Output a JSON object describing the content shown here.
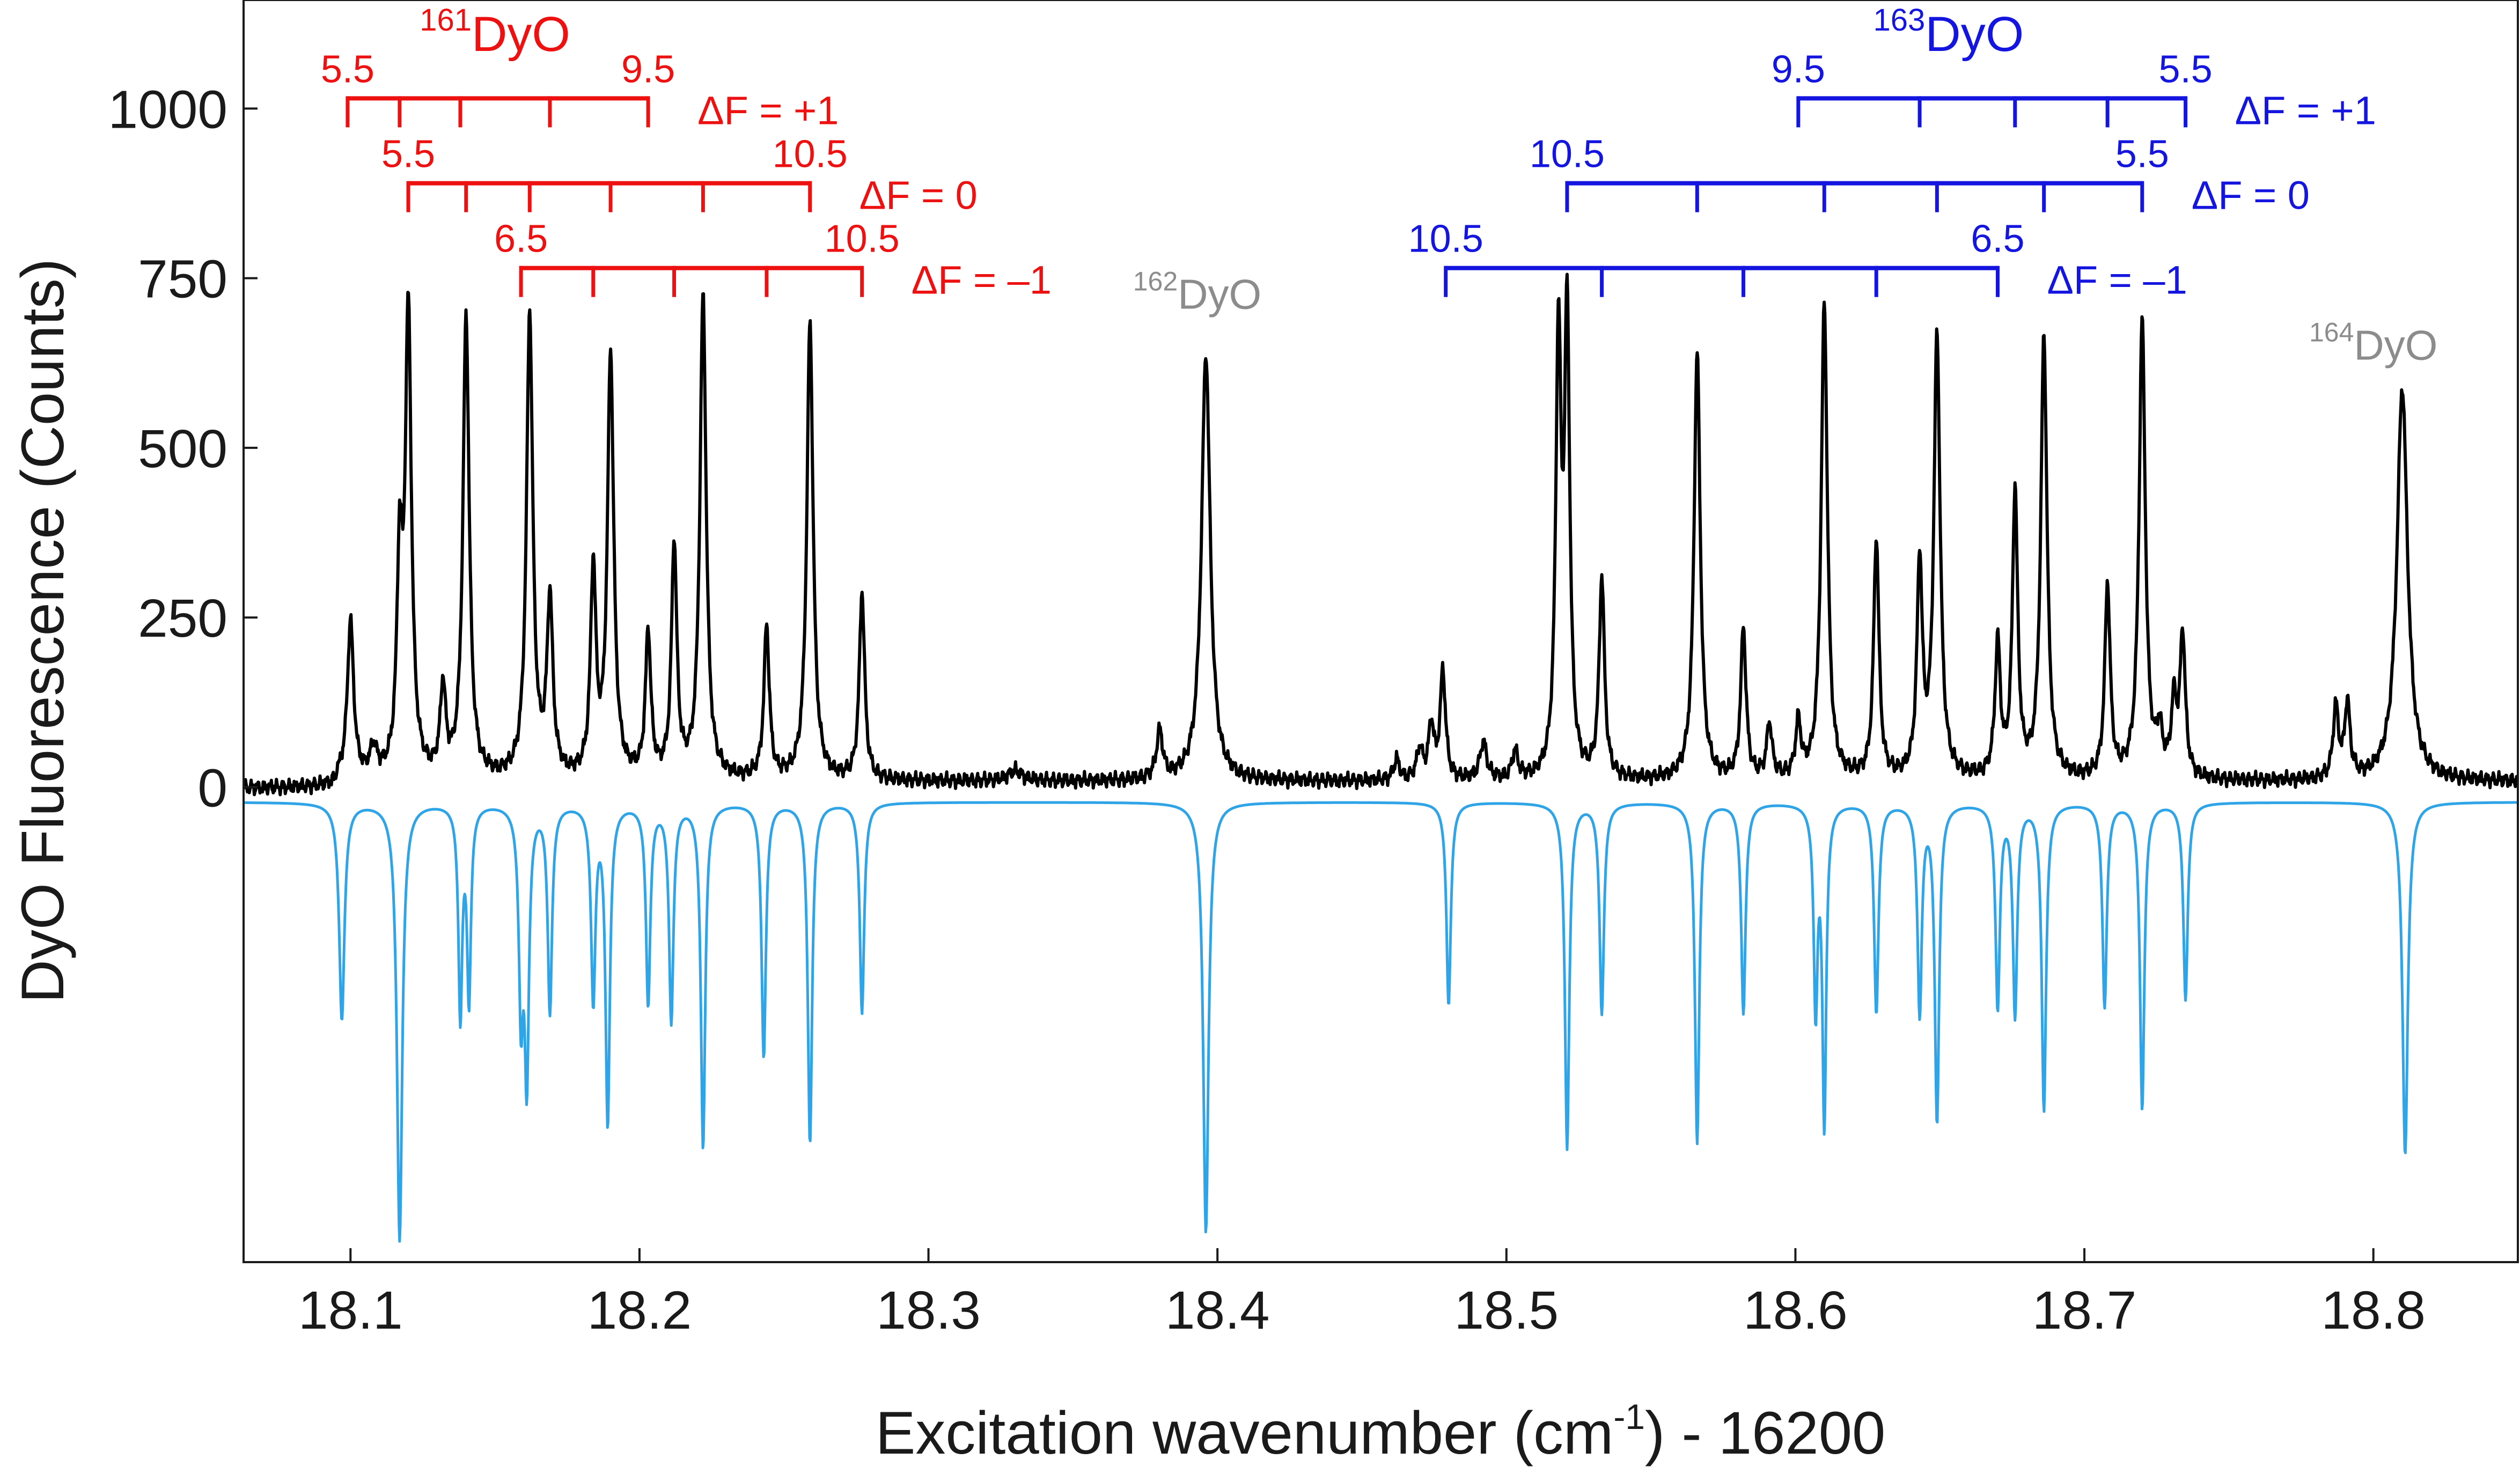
{
  "chart_data": {
    "type": "line",
    "title": "",
    "xlabel": {
      "main": "Excitation wavenumber (cm",
      "sup": "-1",
      "tail": ") - 16200"
    },
    "ylabel": "DyO Fluorescence (Counts)",
    "xlim": [
      18.063,
      18.85
    ],
    "ylim": [
      -700,
      1160
    ],
    "xticks": [
      18.1,
      18.2,
      18.3,
      18.4,
      18.5,
      18.6,
      18.7,
      18.8
    ],
    "xtick_labels": [
      "18.1",
      "18.2",
      "18.3",
      "18.4",
      "18.5",
      "18.6",
      "18.7",
      "18.8"
    ],
    "yticks": [
      0,
      250,
      500,
      750,
      1000
    ],
    "ytick_labels": [
      "0",
      "250",
      "500",
      "750",
      "1000"
    ],
    "grid": false,
    "colors": {
      "measured": "#000000",
      "simulated": "#2fa4e7",
      "isotope_161": "#ee1111",
      "isotope_163": "#1515e0",
      "minor_isotope": "#8c8c8c"
    },
    "series": [
      {
        "key": "measured",
        "baseline": 5,
        "peaks": [
          [
            18.1,
            233,
            0.0013
          ],
          [
            18.108,
            40,
            0.0015
          ],
          [
            18.117,
            300,
            0.0011
          ],
          [
            18.12,
            680,
            0.0013
          ],
          [
            18.132,
            130,
            0.0011
          ],
          [
            18.14,
            680,
            0.0013
          ],
          [
            18.162,
            685,
            0.0013
          ],
          [
            18.169,
            260,
            0.0012
          ],
          [
            18.184,
            305,
            0.0011
          ],
          [
            18.19,
            625,
            0.0013
          ],
          [
            18.203,
            213,
            0.0011
          ],
          [
            18.212,
            345,
            0.0011
          ],
          [
            18.222,
            710,
            0.0013
          ],
          [
            18.244,
            225,
            0.0011
          ],
          [
            18.259,
            675,
            0.0013
          ],
          [
            18.277,
            278,
            0.0011
          ],
          [
            18.33,
            15,
            0.003
          ],
          [
            18.38,
            70,
            0.0013
          ],
          [
            18.396,
            630,
            0.0018
          ],
          [
            18.462,
            30,
            0.0012
          ],
          [
            18.47,
            45,
            0.0012
          ],
          [
            18.474,
            80,
            0.0011
          ],
          [
            18.478,
            160,
            0.0011
          ],
          [
            18.492,
            55,
            0.0014
          ],
          [
            18.503,
            40,
            0.0012
          ],
          [
            18.518,
            635,
            0.0011
          ],
          [
            18.521,
            665,
            0.0011
          ],
          [
            18.533,
            295,
            0.0011
          ],
          [
            18.566,
            630,
            0.0013
          ],
          [
            18.582,
            222,
            0.0011
          ],
          [
            18.591,
            80,
            0.0011
          ],
          [
            18.601,
            80,
            0.0011
          ],
          [
            18.61,
            700,
            0.0013
          ],
          [
            18.628,
            355,
            0.0011
          ],
          [
            18.643,
            315,
            0.0011
          ],
          [
            18.649,
            650,
            0.0013
          ],
          [
            18.67,
            195,
            0.0011
          ],
          [
            18.676,
            420,
            0.0011
          ],
          [
            18.686,
            650,
            0.0013
          ],
          [
            18.708,
            285,
            0.0011
          ],
          [
            18.72,
            675,
            0.0013
          ],
          [
            18.726,
            60,
            0.0012
          ],
          [
            18.731,
            105,
            0.0011
          ],
          [
            18.734,
            210,
            0.0011
          ],
          [
            18.787,
            105,
            0.0011
          ],
          [
            18.791,
            110,
            0.0011
          ],
          [
            18.81,
            580,
            0.0022
          ]
        ]
      },
      {
        "key": "simulated",
        "baseline": -22,
        "peaks": [
          [
            18.097,
            -320,
            0.0011
          ],
          [
            18.117,
            -645,
            0.0011
          ],
          [
            18.138,
            -310,
            0.0008
          ],
          [
            18.141,
            -285,
            0.0008
          ],
          [
            18.159,
            -290,
            0.0009
          ],
          [
            18.161,
            -390,
            0.0009
          ],
          [
            18.169,
            -305,
            0.0009
          ],
          [
            18.184,
            -288,
            0.0009
          ],
          [
            18.189,
            -470,
            0.0009
          ],
          [
            18.203,
            -295,
            0.0009
          ],
          [
            18.211,
            -320,
            0.0009
          ],
          [
            18.222,
            -508,
            0.0009
          ],
          [
            18.243,
            -375,
            0.0009
          ],
          [
            18.259,
            -502,
            0.0009
          ],
          [
            18.277,
            -310,
            0.0009
          ],
          [
            18.396,
            -635,
            0.0011
          ],
          [
            18.48,
            -300,
            0.0009
          ],
          [
            18.521,
            -510,
            0.0009
          ],
          [
            18.533,
            -310,
            0.0009
          ],
          [
            18.566,
            -502,
            0.0009
          ],
          [
            18.582,
            -310,
            0.0009
          ],
          [
            18.607,
            -300,
            0.0008
          ],
          [
            18.61,
            -468,
            0.0008
          ],
          [
            18.628,
            -310,
            0.0009
          ],
          [
            18.643,
            -308,
            0.0009
          ],
          [
            18.649,
            -468,
            0.0009
          ],
          [
            18.67,
            -300,
            0.0009
          ],
          [
            18.676,
            -310,
            0.0009
          ],
          [
            18.686,
            -452,
            0.0009
          ],
          [
            18.707,
            -300,
            0.0009
          ],
          [
            18.72,
            -452,
            0.0009
          ],
          [
            18.735,
            -290,
            0.0009
          ],
          [
            18.811,
            -520,
            0.0011
          ]
        ]
      }
    ],
    "annotations": {
      "isotope_161": {
        "text": "DyO",
        "sup": "161",
        "x": 18.15,
        "y": 1085,
        "ladders": [
          {
            "label": "ΔF = +1",
            "y": 1015,
            "ticks": [
              18.099,
              18.117,
              18.138,
              18.169,
              18.203
            ],
            "left_label": "5.5",
            "right_label": "9.5"
          },
          {
            "label": "ΔF = 0",
            "y": 890,
            "ticks": [
              18.12,
              18.14,
              18.162,
              18.19,
              18.222,
              18.259
            ],
            "left_label": "5.5",
            "right_label": "10.5"
          },
          {
            "label": "ΔF = –1",
            "y": 765,
            "ticks": [
              18.159,
              18.184,
              18.212,
              18.244,
              18.277
            ],
            "left_label": "6.5",
            "right_label": "10.5"
          }
        ]
      },
      "isotope_163": {
        "text": "DyO",
        "sup": "163",
        "x": 18.653,
        "y": 1085,
        "ladders": [
          {
            "label": "ΔF = +1",
            "y": 1015,
            "ticks": [
              18.601,
              18.643,
              18.676,
              18.708,
              18.735
            ],
            "left_label": "9.5",
            "right_label": "5.5"
          },
          {
            "label": "ΔF = 0",
            "y": 890,
            "ticks": [
              18.521,
              18.566,
              18.61,
              18.649,
              18.686,
              18.72
            ],
            "left_label": "10.5",
            "right_label": "5.5"
          },
          {
            "label": "ΔF = –1",
            "y": 765,
            "ticks": [
              18.479,
              18.533,
              18.582,
              18.628,
              18.67
            ],
            "left_label": "10.5",
            "right_label": "6.5"
          }
        ]
      },
      "isotope_162": {
        "text": "DyO",
        "sup": "162",
        "x": 18.393,
        "y": 705
      },
      "isotope_164": {
        "text": "DyO",
        "sup": "164",
        "x": 18.8,
        "y": 630
      }
    }
  }
}
